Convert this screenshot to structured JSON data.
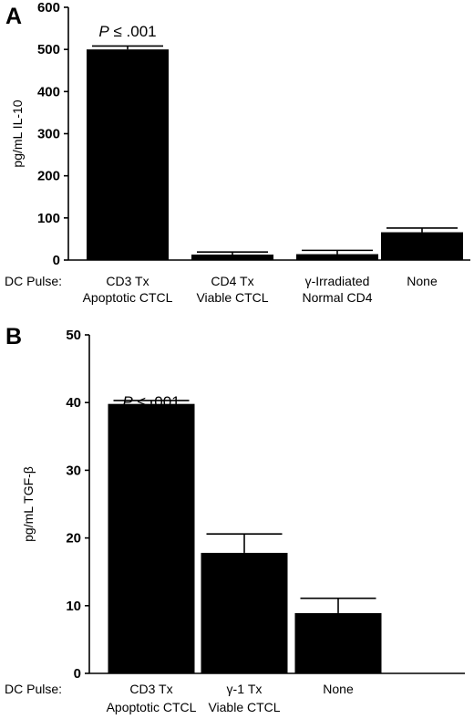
{
  "chart_data": [
    {
      "type": "bar",
      "panel": "A",
      "ylabel": "pg/mL IL-10",
      "x_prefix": "DC Pulse:",
      "ylim": [
        0,
        600
      ],
      "yticks": [
        0,
        100,
        200,
        300,
        400,
        500,
        600
      ],
      "ytick_labels": [
        "0",
        "100",
        "200",
        "300",
        "400",
        "500",
        "600"
      ],
      "categories": [
        [
          "CD3 Tx",
          "Apoptotic CTCL"
        ],
        [
          "CD4 Tx",
          "Viable CTCL"
        ],
        [
          "γ-Irradiated",
          "Normal CD4"
        ],
        [
          "None"
        ]
      ],
      "values": [
        500,
        13,
        14,
        66
      ],
      "errors": [
        8,
        6,
        9,
        10
      ],
      "annotation": {
        "p": "P",
        "rest": "≤ .001",
        "bar_index": 0
      },
      "grid": false
    },
    {
      "type": "bar",
      "panel": "B",
      "ylabel": "pg/mL TGF-β",
      "x_prefix": "DC Pulse:",
      "ylim": [
        0,
        50
      ],
      "yticks": [
        0,
        10,
        20,
        30,
        40,
        50
      ],
      "ytick_labels": [
        "0",
        "10",
        "20",
        "30",
        "40",
        "50"
      ],
      "categories": [
        [
          "CD3 Tx",
          "Apoptotic CTCL"
        ],
        [
          "γ-1 Tx",
          "Viable CTCL"
        ],
        [
          "None"
        ]
      ],
      "values": [
        39.8,
        17.8,
        8.9
      ],
      "errors": [
        0.5,
        2.8,
        2.2
      ],
      "annotation": {
        "p": "P",
        "rest": "≤ .001",
        "bar_index": 0
      },
      "grid": false
    }
  ]
}
